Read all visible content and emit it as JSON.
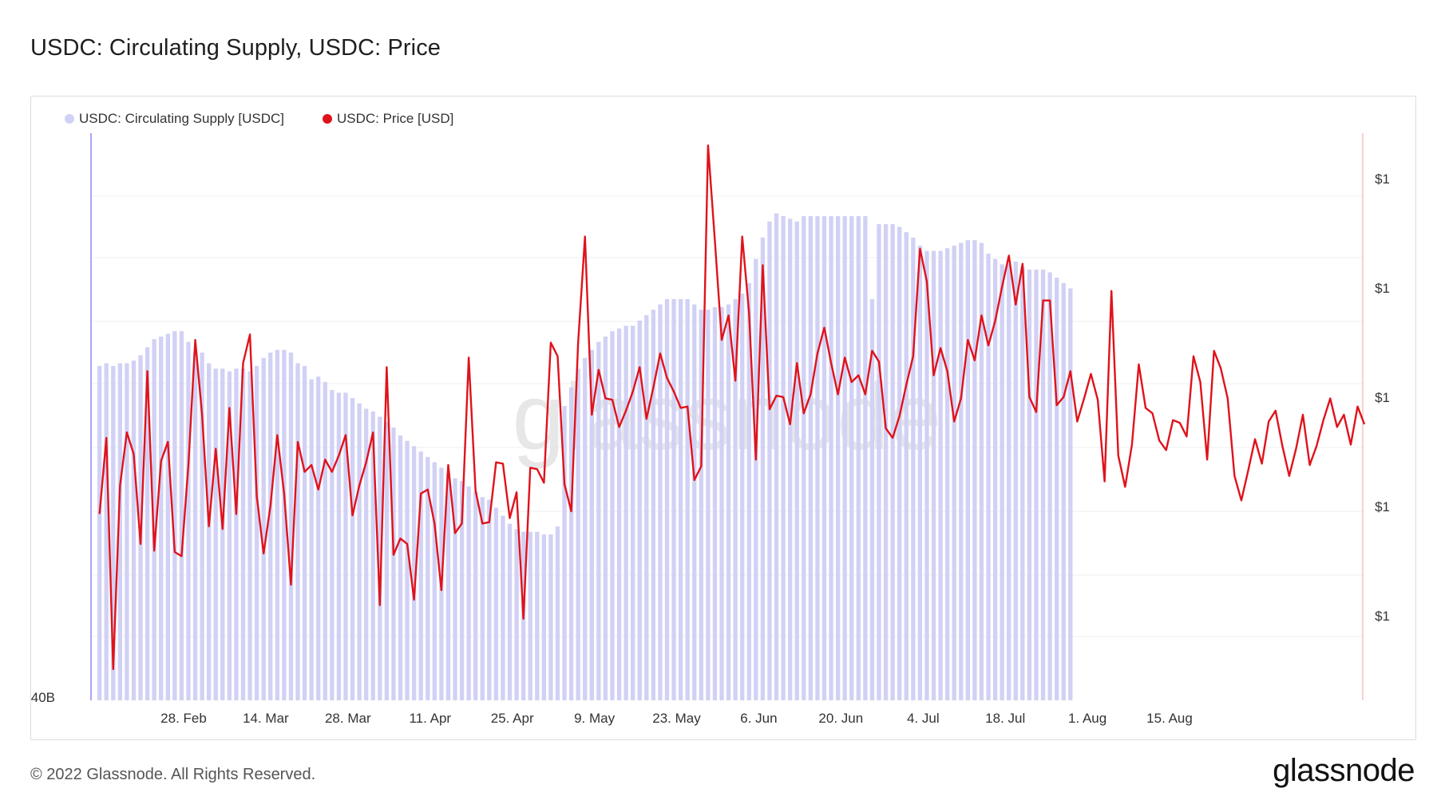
{
  "title": "USDC: Circulating Supply, USDC: Price",
  "footer": {
    "copyright": "© 2022 Glassnode. All Rights Reserved.",
    "logo": "glassnode"
  },
  "watermark": "glassnode",
  "chart_data": {
    "type": "bar+line",
    "x_ticks": [
      "28. Feb",
      "14. Mar",
      "28. Mar",
      "11. Apr",
      "25. Apr",
      "9. May",
      "23. May",
      "6. Jun",
      "20. Jun",
      "4. Jul",
      "18. Jul",
      "1. Aug",
      "15. Aug"
    ],
    "left_axis": {
      "tick_labels": [
        "40B"
      ]
    },
    "right_axis": {
      "tick_labels": [
        "$1",
        "$1",
        "$1",
        "$1",
        "$1"
      ]
    },
    "colors": {
      "supply": "#d1d1f5",
      "price": "#e0121b",
      "left_axis_line": "#8c8cf0",
      "right_axis_line": "#f0a0a0"
    },
    "series": [
      {
        "name": "USDC: Circulating Supply [USDC]",
        "type": "bar",
        "unit": "B (relative)",
        "values": [
          52.5,
          52.6,
          52.5,
          52.6,
          52.6,
          52.7,
          52.9,
          53.2,
          53.5,
          53.6,
          53.7,
          53.8,
          53.8,
          53.4,
          53.0,
          53.0,
          52.6,
          52.4,
          52.4,
          52.3,
          52.4,
          52.4,
          52.3,
          52.5,
          52.8,
          53.0,
          53.1,
          53.1,
          53.0,
          52.6,
          52.5,
          52.0,
          52.1,
          51.9,
          51.6,
          51.5,
          51.5,
          51.3,
          51.1,
          50.9,
          50.8,
          50.6,
          50.4,
          50.2,
          49.9,
          49.7,
          49.5,
          49.3,
          49.1,
          48.9,
          48.7,
          48.5,
          48.3,
          48.2,
          48.0,
          47.8,
          47.6,
          47.5,
          47.2,
          46.9,
          46.6,
          46.4,
          46.3,
          46.3,
          46.3,
          46.2,
          46.2,
          46.5,
          51.0,
          51.7,
          52.4,
          52.8,
          53.1,
          53.4,
          53.6,
          53.8,
          53.9,
          54.0,
          54.0,
          54.2,
          54.4,
          54.6,
          54.8,
          55.0,
          55.0,
          55.0,
          55.0,
          54.8,
          54.6,
          54.6,
          54.7,
          54.7,
          54.8,
          55.0,
          55.2,
          55.6,
          56.5,
          57.3,
          57.9,
          58.2,
          58.1,
          58.0,
          57.9,
          58.1,
          58.1,
          58.1,
          58.1,
          58.1,
          58.1,
          58.1,
          58.1,
          58.1,
          58.1,
          55.0,
          57.8,
          57.8,
          57.8,
          57.7,
          57.5,
          57.3,
          57.0,
          56.8,
          56.8,
          56.8,
          56.9,
          57.0,
          57.1,
          57.2,
          57.2,
          57.1,
          56.7,
          56.5,
          56.3,
          56.3,
          56.4,
          56.2,
          56.1,
          56.1,
          56.1,
          56.0,
          55.8,
          55.6,
          55.4
        ]
      },
      {
        "name": "USDC: Price [USD]",
        "type": "line",
        "unit": "USD",
        "values": [
          0.99932,
          0.99988,
          0.99818,
          0.99953,
          0.99992,
          0.99976,
          0.9991,
          1.00037,
          0.99905,
          0.99971,
          0.99985,
          0.99904,
          0.99901,
          0.99968,
          1.0006,
          1.00005,
          0.99923,
          0.9998,
          0.99921,
          1.0001,
          0.99932,
          1.00043,
          1.00064,
          0.99945,
          0.99903,
          0.99938,
          0.9999,
          0.99947,
          0.9988,
          0.99985,
          0.99963,
          0.99968,
          0.9995,
          0.99972,
          0.99963,
          0.99975,
          0.9999,
          0.99931,
          0.99953,
          0.9997,
          0.99992,
          0.99865,
          1.0004,
          0.99902,
          0.99914,
          0.9991,
          0.99869,
          0.99947,
          0.9995,
          0.99925,
          0.99876,
          0.99968,
          0.99918,
          0.99925,
          1.00047,
          0.99949,
          0.99925,
          0.99926,
          0.9997,
          0.99969,
          0.99929,
          0.99948,
          0.99855,
          0.99966,
          0.99965,
          0.99955,
          1.00058,
          1.00048,
          0.99954,
          0.99934,
          1.00058,
          1.00136,
          1.00005,
          1.00038,
          1.00017,
          1.00016,
          0.99996,
          1.00008,
          1.00022,
          1.0004,
          1.00002,
          1.00025,
          1.0005,
          1.00032,
          1.00022,
          1.0001,
          1.00011,
          0.99957,
          0.99967,
          1.00203,
          1.00133,
          1.0006,
          1.00078,
          1.0003,
          1.00136,
          1.0008,
          0.99972,
          1.00115,
          1.00009,
          1.00019,
          1.00018,
          0.99998,
          1.00043,
          1.00006,
          1.0002,
          1.0005,
          1.00069,
          1.00043,
          1.0002,
          1.00047,
          1.00029,
          1.00034,
          1.0002,
          1.00052,
          1.00044,
          0.99995,
          0.99988,
          1.00004,
          1.00027,
          1.00048,
          1.00127,
          1.00103,
          1.00034,
          1.00054,
          1.00037,
          1.0,
          1.00017,
          1.0006,
          1.00045,
          1.00078,
          1.00056,
          1.00074,
          1.00099,
          1.00122,
          1.00086,
          1.00116,
          1.00018,
          1.00007,
          1.00089,
          1.00089,
          1.00012,
          1.00018,
          1.00037,
          1.0,
          1.00017,
          1.00035,
          1.00016,
          0.99956,
          1.00096,
          0.99975,
          0.99952,
          0.99983,
          1.00042,
          1.0001,
          1.00006,
          0.99986,
          0.99979,
          1.00001,
          0.99999,
          0.99989,
          1.00048,
          1.00029,
          0.99972,
          1.00052,
          1.00039,
          1.00017,
          0.9996,
          0.99942,
          0.99964,
          0.99987,
          0.99969,
          1.0,
          1.00008,
          0.99982,
          0.9996,
          0.9998,
          1.00005,
          0.99968,
          0.99982,
          1.00001,
          1.00017,
          0.99996,
          1.00005,
          0.99983,
          1.00011,
          0.99998
        ]
      }
    ],
    "grid": true,
    "legend_position": "top-left"
  }
}
